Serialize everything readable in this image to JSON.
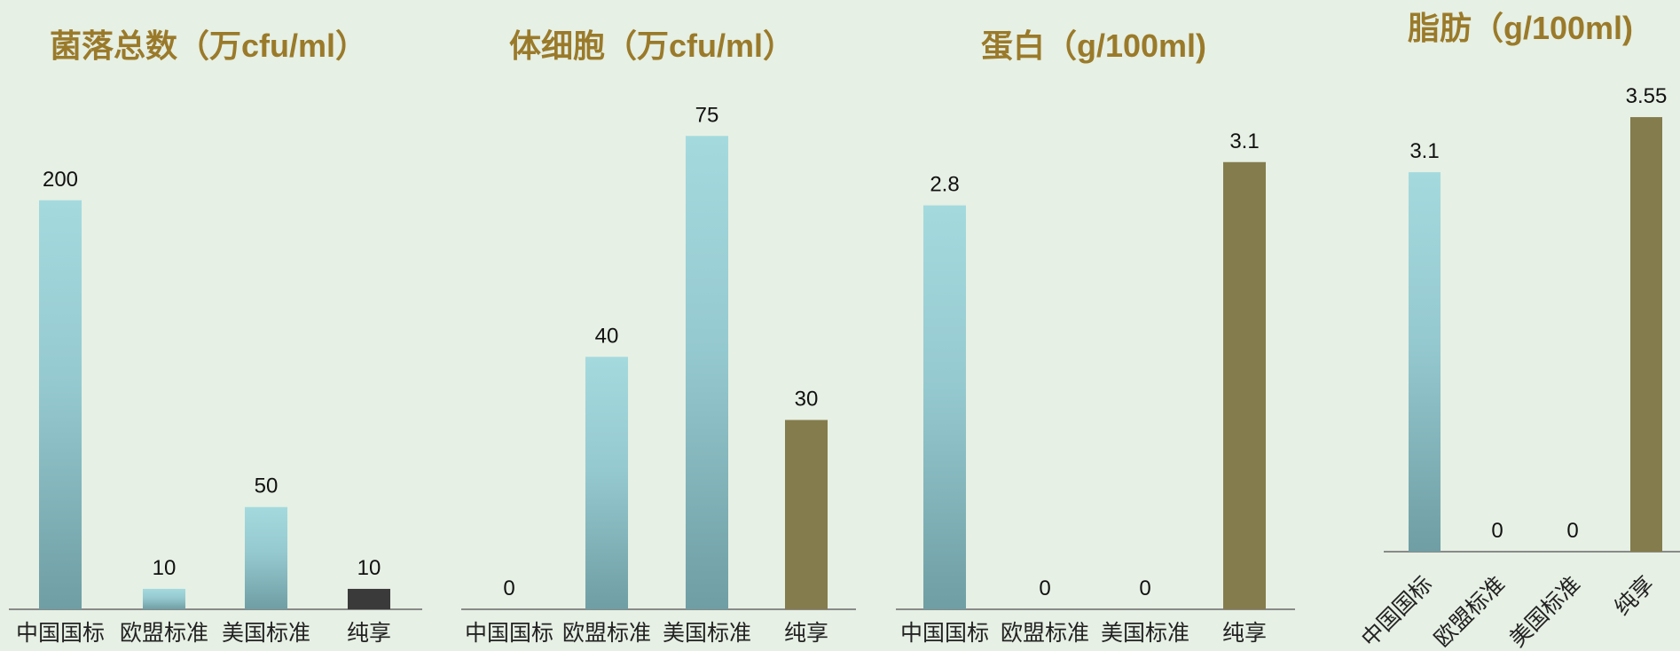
{
  "chart_data": [
    {
      "type": "bar",
      "title": "菌落总数（万cfu/ml）",
      "categories": [
        "中国国标",
        "欧盟标准",
        "美国标准",
        "纯享"
      ],
      "values": [
        200,
        10,
        50,
        10
      ],
      "value_labels": [
        "200",
        "10",
        "50",
        "10"
      ],
      "bar_colors": [
        "teal-gradient",
        "teal-gradient",
        "teal-gradient",
        "#3a3a3a"
      ],
      "ylim": [
        0,
        210
      ],
      "grid": false,
      "xlabel": "",
      "ylabel": ""
    },
    {
      "type": "bar",
      "title": "体细胞（万cfu/ml）",
      "categories": [
        "中国国标",
        "欧盟标准",
        "美国标准",
        "纯享"
      ],
      "values": [
        0,
        40,
        75,
        30
      ],
      "value_labels": [
        "0",
        "40",
        "75",
        "30"
      ],
      "bar_colors": [
        "teal-gradient",
        "teal-gradient",
        "teal-gradient",
        "#847c4c"
      ],
      "ylim": [
        0,
        80
      ],
      "grid": false,
      "xlabel": "",
      "ylabel": ""
    },
    {
      "type": "bar",
      "title": "蛋白（g/100ml)",
      "categories": [
        "中国国标",
        "欧盟标准",
        "美国标准",
        "纯享"
      ],
      "values": [
        2.8,
        0,
        0,
        3.1
      ],
      "value_labels": [
        "2.8",
        "0",
        "0",
        "3.1"
      ],
      "bar_colors": [
        "teal-gradient",
        "teal-gradient",
        "teal-gradient",
        "#847c4c"
      ],
      "ylim": [
        0,
        3.3
      ],
      "grid": false,
      "xlabel": "",
      "ylabel": ""
    },
    {
      "type": "bar",
      "title": "脂肪（g/100ml)",
      "categories": [
        "中国国标",
        "欧盟标准",
        "美国标准",
        "纯享"
      ],
      "values": [
        3.1,
        0,
        0,
        3.55
      ],
      "value_labels": [
        "3.1",
        "0",
        "0",
        "3.55"
      ],
      "bar_colors": [
        "teal-gradient",
        "teal-gradient",
        "teal-gradient",
        "#847c4c"
      ],
      "ylim": [
        0,
        3.6
      ],
      "grid": false,
      "tick_rotation": "diagonal",
      "xlabel": "",
      "ylabel": ""
    }
  ]
}
